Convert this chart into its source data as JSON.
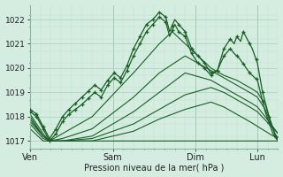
{
  "title": "",
  "xlabel": "Pression niveau de la mer( hPa )",
  "ylabel": "",
  "bg_color": "#d4ede0",
  "grid_major_color": "#aacfba",
  "grid_minor_color": "#c0e0cc",
  "line_color": "#1a5e28",
  "ylim": [
    1016.7,
    1022.6
  ],
  "xlim": [
    0,
    192
  ],
  "day_labels": [
    "Ven",
    "Sam",
    "Dim",
    "Lun"
  ],
  "day_positions": [
    0,
    64,
    128,
    176
  ],
  "yticks": [
    1017,
    1018,
    1019,
    1020,
    1021,
    1022
  ]
}
